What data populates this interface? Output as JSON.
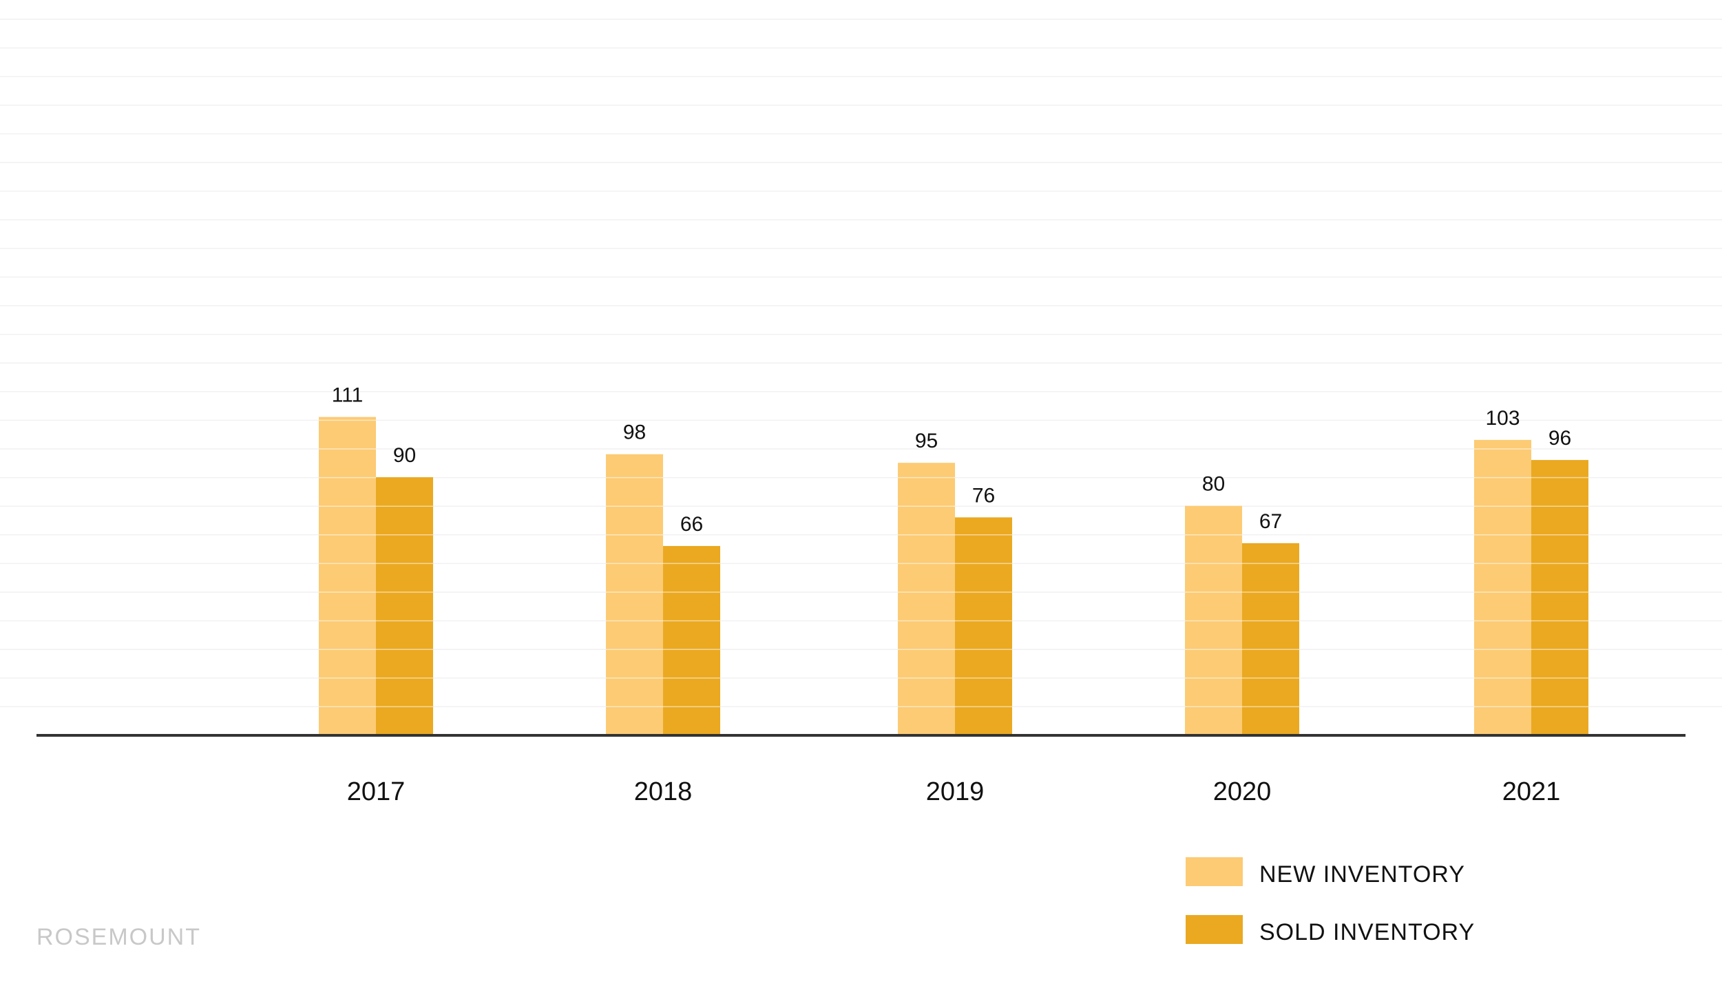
{
  "chart_data": {
    "type": "bar",
    "categories": [
      "2017",
      "2018",
      "2019",
      "2020",
      "2021"
    ],
    "series": [
      {
        "name": "NEW INVENTORY",
        "values": [
          111,
          98,
          95,
          80,
          103
        ],
        "color": "#FCCB74"
      },
      {
        "name": "SOLD INVENTORY",
        "values": [
          90,
          66,
          76,
          67,
          96
        ],
        "color": "#EAA921"
      }
    ],
    "title": "",
    "xlabel": "",
    "ylabel": "",
    "ylim": [
      0,
      240
    ],
    "grid": true,
    "legend": "bottom-right",
    "data_labels": true
  },
  "legend": {
    "items": [
      {
        "label": "NEW INVENTORY",
        "color": "#FCCB74"
      },
      {
        "label": "SOLD INVENTORY",
        "color": "#EAA921"
      }
    ]
  },
  "brand": {
    "text": "ROSEMOUNT"
  }
}
